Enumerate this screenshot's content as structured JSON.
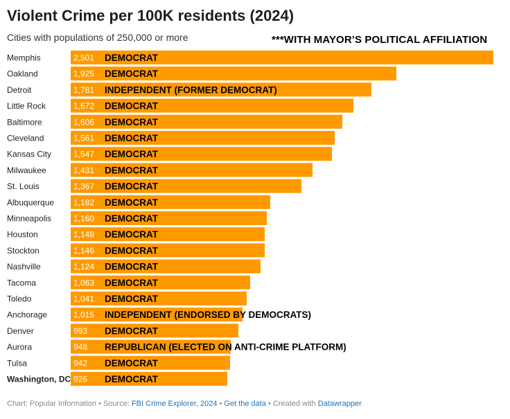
{
  "header": {
    "title": "Violent Crime per 100K residents (2024)",
    "subtitle": "Cities with populations of 250,000 or more",
    "annotation": "***WITH MAYOR’S POLITICAL AFFILIATION"
  },
  "colors": {
    "bar": "#ff9900",
    "value_text": "#ffffff",
    "party_text": "#000000",
    "link": "#1a73b8"
  },
  "chart_data": {
    "type": "bar",
    "orientation": "horizontal",
    "title": "Violent Crime per 100K residents (2024)",
    "subtitle": "Cities with populations of 250,000 or more",
    "xlabel": "",
    "ylabel": "",
    "xlim": [
      0,
      2501
    ],
    "grid": false,
    "legend": "none",
    "categories": [
      "Memphis",
      "Oakland",
      "Detroit",
      "Little Rock",
      "Baltimore",
      "Cleveland",
      "Kansas City",
      "Milwaukee",
      "St. Louis",
      "Albuquerque",
      "Minneapolis",
      "Houston",
      "Stockton",
      "Nashville",
      "Tacoma",
      "Toledo",
      "Anchorage",
      "Denver",
      "Aurora",
      "Tulsa",
      "Washington, DC"
    ],
    "values": [
      2501,
      1925,
      1781,
      1672,
      1606,
      1561,
      1547,
      1431,
      1367,
      1182,
      1160,
      1148,
      1146,
      1124,
      1063,
      1041,
      1015,
      993,
      948,
      942,
      926
    ],
    "value_labels": [
      "2,501",
      "1,925",
      "1,781",
      "1,672",
      "1,606",
      "1,561",
      "1,547",
      "1,431",
      "1,367",
      "1,182",
      "1,160",
      "1,148",
      "1,146",
      "1,124",
      "1,063",
      "1,041",
      "1,015",
      "993",
      "948",
      "942",
      "926"
    ],
    "affiliations": [
      "DEMOCRAT",
      "DEMOCRAT",
      "INDEPENDENT (FORMER DEMOCRAT)",
      "DEMOCRAT",
      "DEMOCRAT",
      "DEMOCRAT",
      "DEMOCRAT",
      "DEMOCRAT",
      "DEMOCRAT",
      "DEMOCRAT",
      "DEMOCRAT",
      "DEMOCRAT",
      "DEMOCRAT",
      "DEMOCRAT",
      "DEMOCRAT",
      "DEMOCRAT",
      "INDEPENDENT (ENDORSED BY DEMOCRATS)",
      "DEMOCRAT",
      "REPUBLICAN (ELECTED ON ANTI-CRIME PLATFORM)",
      "DEMOCRAT",
      "DEMOCRAT"
    ],
    "highlighted_category": "Washington, DC"
  },
  "footer": {
    "chart_credit": "Chart: Popular Information",
    "sep1": " • ",
    "source_prefix": "Source: ",
    "source_link": "FBI Crime Explorer, 2024",
    "sep2": " • ",
    "data_link": "Get the data",
    "sep3": " • ",
    "created_prefix": "Created with ",
    "created_link": "Datawrapper"
  }
}
